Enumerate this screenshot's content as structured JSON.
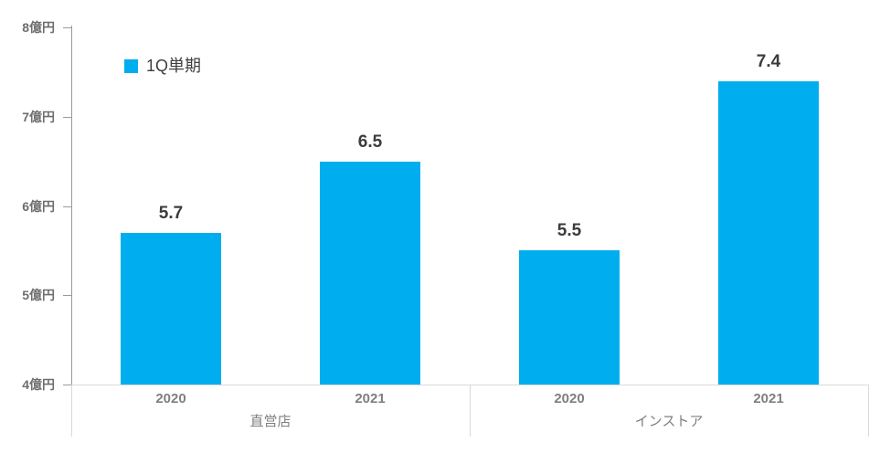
{
  "chart_data": {
    "type": "bar",
    "title": "",
    "unit": "億円",
    "legend": [
      {
        "label": "1Q単期",
        "color": "#00AEEF"
      }
    ],
    "legend_position": "top-left",
    "bar_color": "#00AEEF",
    "grid": false,
    "y_axis": {
      "ylim": [
        4,
        8
      ],
      "tick_values": [
        8,
        7,
        6,
        5,
        4
      ],
      "tick_labels": [
        "8億円",
        "7億円",
        "6億円",
        "5億円",
        "4億円"
      ]
    },
    "groups": [
      {
        "label": "直営店",
        "categories": [
          "2020",
          "2021"
        ],
        "values": [
          5.7,
          6.5
        ],
        "data_labels": [
          "5.7",
          "6.5"
        ]
      },
      {
        "label": "インストア",
        "categories": [
          "2020",
          "2021"
        ],
        "values": [
          5.5,
          7.4
        ],
        "data_labels": [
          "5.5",
          "7.4"
        ]
      }
    ]
  },
  "colors": {
    "bar": "#00AEEF",
    "data_label": "#3c3c3c",
    "axis_label": "#6e6e6e",
    "category_label": "#7f7f7f",
    "group_label": "#7f7f7f",
    "legend_text": "#3f3f3f",
    "axis_line": "#9a9a9a",
    "separator_line": "#d9d9d9",
    "background": "#ffffff"
  }
}
